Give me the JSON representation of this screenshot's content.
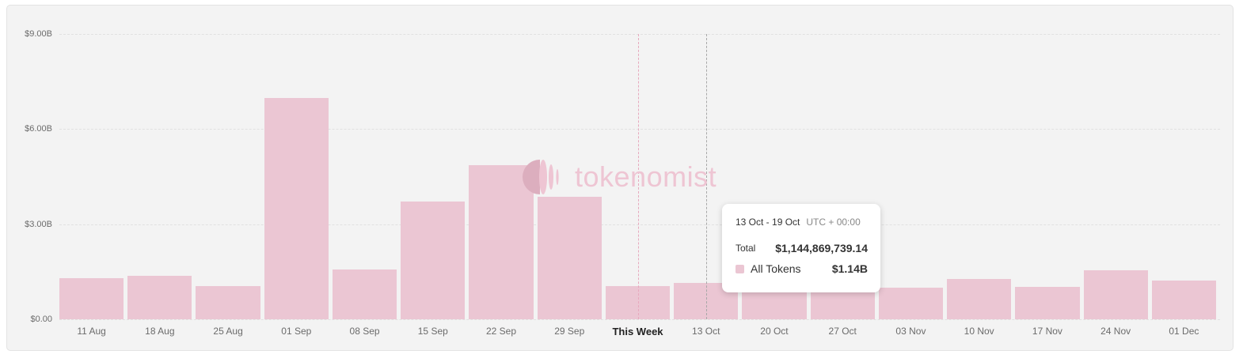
{
  "chart_data": {
    "type": "bar",
    "title": "",
    "xlabel": "",
    "ylabel": "",
    "ylim": [
      0,
      9
    ],
    "y_unit": "$B",
    "grid": true,
    "y_ticks": [
      "$0.00",
      "$3.00B",
      "$6.00B",
      "$9.00B"
    ],
    "categories": [
      "11 Aug",
      "18 Aug",
      "25 Aug",
      "01 Sep",
      "08 Sep",
      "15 Sep",
      "22 Sep",
      "29 Sep",
      "This Week",
      "13 Oct",
      "20 Oct",
      "27 Oct",
      "03 Nov",
      "10 Nov",
      "17 Nov",
      "24 Nov",
      "01 Dec"
    ],
    "series": [
      {
        "name": "All Tokens",
        "color": "#ebc6d3",
        "values": [
          1.3,
          1.37,
          1.05,
          6.98,
          1.57,
          3.72,
          4.86,
          3.87,
          1.05,
          1.14,
          1.2,
          1.2,
          1.0,
          1.27,
          1.02,
          1.55,
          1.22
        ]
      }
    ],
    "highlighted_category": "This Week",
    "hovered_category": "13 Oct"
  },
  "watermark": {
    "text": "tokenomist"
  },
  "tooltip": {
    "range": "13 Oct - 19 Oct",
    "timezone": "UTC + 00:00",
    "total_label": "Total",
    "total_value": "$1,144,869,739.14",
    "series_label": "All Tokens",
    "series_value": "$1.14B"
  }
}
